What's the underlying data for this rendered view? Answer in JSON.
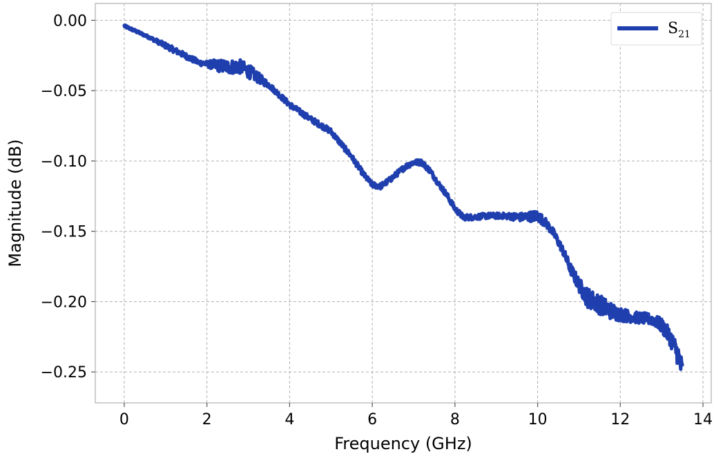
{
  "chart_data": {
    "type": "line",
    "title": "",
    "xlabel": "Frequency (GHz)",
    "ylabel": "Magnitude (dB)",
    "xlim": [
      -0.7,
      14.2
    ],
    "ylim": [
      -0.272,
      0.012
    ],
    "x_ticks": [
      0,
      2,
      4,
      6,
      8,
      10,
      12,
      14
    ],
    "x_tick_labels": [
      "0",
      "2",
      "4",
      "6",
      "8",
      "10",
      "12",
      "14"
    ],
    "y_ticks": [
      0.0,
      -0.05,
      -0.1,
      -0.15,
      -0.2,
      -0.25
    ],
    "y_tick_labels": [
      "0.00",
      "−0.05",
      "−0.10",
      "−0.15",
      "−0.20",
      "−0.25"
    ],
    "grid": true,
    "legend_position": "top-right",
    "series": [
      {
        "name": "S21",
        "name_main": "S",
        "name_sub": "21",
        "color": "#1f3fae",
        "x": [
          0,
          0.3,
          0.6,
          1.0,
          1.4,
          1.8,
          2.0,
          2.2,
          2.5,
          2.8,
          3.0,
          3.2,
          3.5,
          4.0,
          4.5,
          5.0,
          5.5,
          5.8,
          6.0,
          6.2,
          6.4,
          6.6,
          6.8,
          7.0,
          7.2,
          7.4,
          7.6,
          7.8,
          8.0,
          8.2,
          8.4,
          8.8,
          9.2,
          9.6,
          10.0,
          10.2,
          10.4,
          10.6,
          10.8,
          11.0,
          11.2,
          11.5,
          11.8,
          12.0,
          12.3,
          12.6,
          12.8,
          13.0,
          13.2,
          13.4,
          13.5
        ],
        "y": [
          -0.004,
          -0.008,
          -0.012,
          -0.018,
          -0.024,
          -0.03,
          -0.031,
          -0.032,
          -0.033,
          -0.033,
          -0.036,
          -0.04,
          -0.046,
          -0.06,
          -0.07,
          -0.079,
          -0.097,
          -0.11,
          -0.117,
          -0.118,
          -0.114,
          -0.109,
          -0.104,
          -0.101,
          -0.101,
          -0.107,
          -0.116,
          -0.124,
          -0.134,
          -0.14,
          -0.14,
          -0.139,
          -0.139,
          -0.14,
          -0.139,
          -0.144,
          -0.152,
          -0.163,
          -0.177,
          -0.188,
          -0.197,
          -0.202,
          -0.207,
          -0.209,
          -0.211,
          -0.212,
          -0.213,
          -0.217,
          -0.225,
          -0.238,
          -0.25
        ],
        "noise_amplitude": [
          0.001,
          0.001,
          0.001,
          0.002,
          0.002,
          0.002,
          0.002,
          0.004,
          0.005,
          0.005,
          0.005,
          0.004,
          0.002,
          0.002,
          0.002,
          0.002,
          0.002,
          0.002,
          0.002,
          0.002,
          0.002,
          0.002,
          0.002,
          0.002,
          0.002,
          0.002,
          0.002,
          0.002,
          0.002,
          0.002,
          0.002,
          0.002,
          0.002,
          0.003,
          0.004,
          0.003,
          0.003,
          0.003,
          0.004,
          0.005,
          0.007,
          0.007,
          0.006,
          0.005,
          0.004,
          0.004,
          0.004,
          0.005,
          0.006,
          0.008,
          0.009
        ]
      }
    ]
  }
}
